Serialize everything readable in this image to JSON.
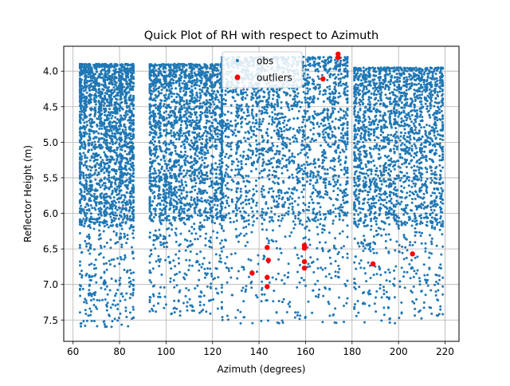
{
  "chart_data": {
    "type": "scatter",
    "title": "Quick Plot of RH with respect to Azimuth",
    "xlabel": "Azimuth (degrees)",
    "ylabel": "Reflector Height (m)",
    "xlim": [
      56,
      226
    ],
    "ylim": [
      7.8,
      3.65
    ],
    "y_inverted": true,
    "grid": true,
    "legend_position": "top-center",
    "x_ticks": [
      60,
      80,
      100,
      120,
      140,
      160,
      180,
      200,
      220
    ],
    "y_ticks": [
      4.0,
      4.5,
      5.0,
      5.5,
      6.0,
      6.5,
      7.0,
      7.5
    ],
    "series": [
      {
        "name": "obs",
        "color": "#1f77b4",
        "marker_size": 2.4,
        "azimuth_clusters": [
          {
            "x_range": [
              63,
              86
            ],
            "y_range": [
              3.9,
              7.6
            ]
          },
          {
            "x_range": [
              93,
              124
            ],
            "y_range": [
              3.9,
              7.45
            ]
          },
          {
            "x_range": [
              124,
              178
            ],
            "y_range": [
              3.8,
              7.55
            ]
          },
          {
            "x_range": [
              181,
              219
            ],
            "y_range": [
              3.95,
              7.55
            ]
          }
        ],
        "approx_point_count": 9000
      },
      {
        "name": "outliers",
        "color": "#ff0000",
        "marker_size": 4.5,
        "points": [
          [
            137,
            6.84
          ],
          [
            143.5,
            6.48
          ],
          [
            144,
            6.66
          ],
          [
            143.5,
            6.9
          ],
          [
            143.5,
            7.03
          ],
          [
            159.5,
            6.45
          ],
          [
            159.5,
            6.49
          ],
          [
            159.5,
            6.68
          ],
          [
            159.5,
            6.77
          ],
          [
            167.5,
            4.11
          ],
          [
            174,
            3.76
          ],
          [
            174,
            3.81
          ],
          [
            189,
            6.71
          ],
          [
            206,
            6.57
          ]
        ]
      }
    ]
  }
}
